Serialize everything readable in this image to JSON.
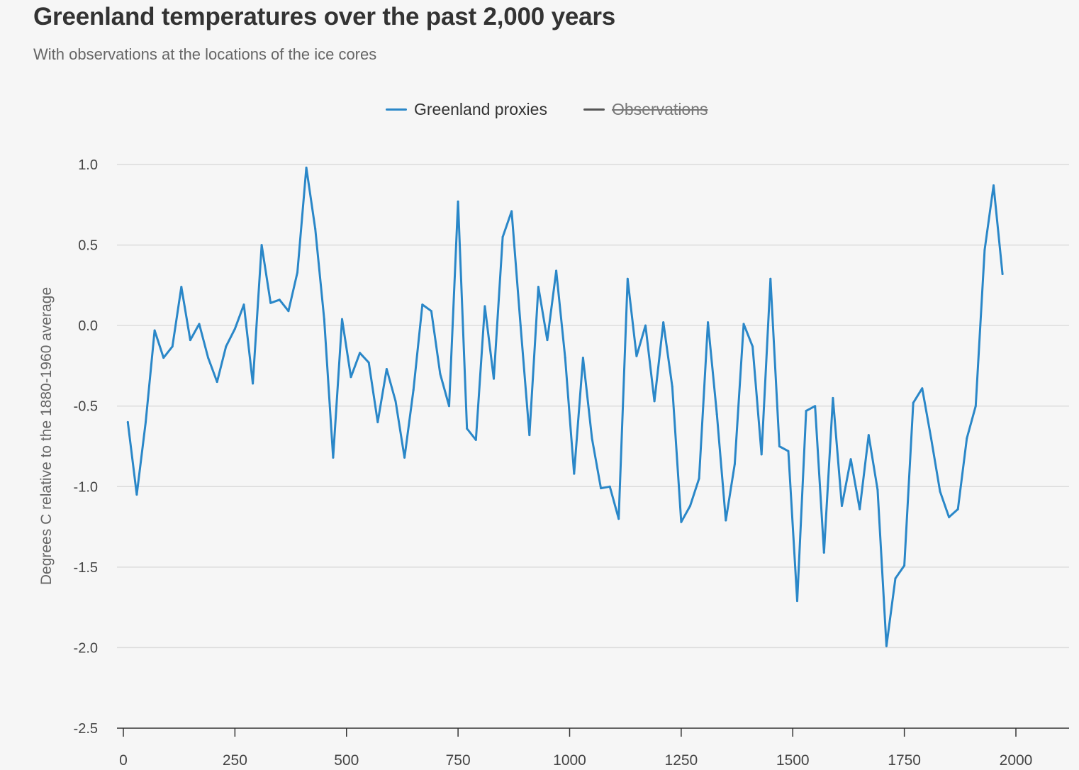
{
  "title": "Greenland temperatures over the past 2,000 years",
  "subtitle": "With observations at the locations of the ice cores",
  "legend": {
    "proxies_label": "Greenland proxies",
    "observations_label": "Observations"
  },
  "chart_data": {
    "type": "line",
    "title": "Greenland temperatures over the past 2,000 years",
    "subtitle": "With observations at the locations of the ice cores",
    "xlabel": "",
    "ylabel": "Degrees C relative to the 1880-1960 average",
    "xlim": [
      0,
      2000
    ],
    "ylim": [
      -2.5,
      1.0
    ],
    "x_ticks": [
      0,
      250,
      500,
      750,
      1000,
      1250,
      1500,
      1750,
      2000
    ],
    "x_tick_labels": [
      "0",
      "250",
      "500",
      "750",
      "1000",
      "1250",
      "1500",
      "1750",
      "2000"
    ],
    "y_ticks": [
      -2.5,
      -2.0,
      -1.5,
      -1.0,
      -0.5,
      0.0,
      0.5,
      1.0
    ],
    "y_tick_labels": [
      "-2.5",
      "-2.0",
      "-1.5",
      "-1.0",
      "-0.5",
      "0.0",
      "0.5",
      "1.0"
    ],
    "grid": true,
    "legend_position": "top-center",
    "series": [
      {
        "name": "Greenland proxies",
        "color": "#2a87c8",
        "visible": true,
        "points": [
          [
            10,
            -0.6
          ],
          [
            30,
            -1.05
          ],
          [
            50,
            -0.6
          ],
          [
            70,
            -0.03
          ],
          [
            90,
            -0.2
          ],
          [
            110,
            -0.13
          ],
          [
            130,
            0.24
          ],
          [
            150,
            -0.09
          ],
          [
            170,
            0.01
          ],
          [
            190,
            -0.2
          ],
          [
            210,
            -0.35
          ],
          [
            230,
            -0.13
          ],
          [
            250,
            -0.02
          ],
          [
            270,
            0.13
          ],
          [
            290,
            -0.36
          ],
          [
            310,
            0.5
          ],
          [
            330,
            0.14
          ],
          [
            350,
            0.16
          ],
          [
            370,
            0.09
          ],
          [
            390,
            0.33
          ],
          [
            410,
            0.98
          ],
          [
            430,
            0.6
          ],
          [
            450,
            0.04
          ],
          [
            470,
            -0.82
          ],
          [
            490,
            0.04
          ],
          [
            510,
            -0.32
          ],
          [
            530,
            -0.17
          ],
          [
            550,
            -0.23
          ],
          [
            570,
            -0.6
          ],
          [
            590,
            -0.27
          ],
          [
            610,
            -0.47
          ],
          [
            630,
            -0.82
          ],
          [
            650,
            -0.4
          ],
          [
            670,
            0.13
          ],
          [
            690,
            0.09
          ],
          [
            710,
            -0.3
          ],
          [
            730,
            -0.5
          ],
          [
            750,
            0.77
          ],
          [
            770,
            -0.64
          ],
          [
            790,
            -0.71
          ],
          [
            810,
            0.12
          ],
          [
            830,
            -0.33
          ],
          [
            850,
            0.55
          ],
          [
            870,
            0.71
          ],
          [
            890,
            0.0
          ],
          [
            910,
            -0.68
          ],
          [
            930,
            0.24
          ],
          [
            950,
            -0.09
          ],
          [
            970,
            0.34
          ],
          [
            990,
            -0.2
          ],
          [
            1010,
            -0.92
          ],
          [
            1030,
            -0.2
          ],
          [
            1050,
            -0.7
          ],
          [
            1070,
            -1.01
          ],
          [
            1090,
            -1.0
          ],
          [
            1110,
            -1.2
          ],
          [
            1130,
            0.29
          ],
          [
            1150,
            -0.19
          ],
          [
            1170,
            0.0
          ],
          [
            1190,
            -0.47
          ],
          [
            1210,
            0.02
          ],
          [
            1230,
            -0.38
          ],
          [
            1250,
            -1.22
          ],
          [
            1270,
            -1.12
          ],
          [
            1290,
            -0.95
          ],
          [
            1310,
            0.02
          ],
          [
            1330,
            -0.55
          ],
          [
            1350,
            -1.21
          ],
          [
            1370,
            -0.86
          ],
          [
            1390,
            0.01
          ],
          [
            1410,
            -0.13
          ],
          [
            1430,
            -0.8
          ],
          [
            1450,
            0.29
          ],
          [
            1470,
            -0.75
          ],
          [
            1490,
            -0.78
          ],
          [
            1510,
            -1.71
          ],
          [
            1530,
            -0.53
          ],
          [
            1550,
            -0.5
          ],
          [
            1570,
            -1.41
          ],
          [
            1590,
            -0.45
          ],
          [
            1610,
            -1.12
          ],
          [
            1630,
            -0.83
          ],
          [
            1650,
            -1.14
          ],
          [
            1670,
            -0.68
          ],
          [
            1690,
            -1.02
          ],
          [
            1710,
            -1.99
          ],
          [
            1730,
            -1.57
          ],
          [
            1750,
            -1.49
          ],
          [
            1770,
            -0.48
          ],
          [
            1790,
            -0.39
          ],
          [
            1810,
            -0.7
          ],
          [
            1830,
            -1.03
          ],
          [
            1850,
            -1.19
          ],
          [
            1870,
            -1.14
          ],
          [
            1890,
            -0.7
          ],
          [
            1910,
            -0.5
          ],
          [
            1930,
            0.47
          ],
          [
            1950,
            0.87
          ],
          [
            1970,
            0.32
          ]
        ]
      },
      {
        "name": "Observations",
        "color": "#555555",
        "visible": false,
        "points": []
      }
    ]
  }
}
